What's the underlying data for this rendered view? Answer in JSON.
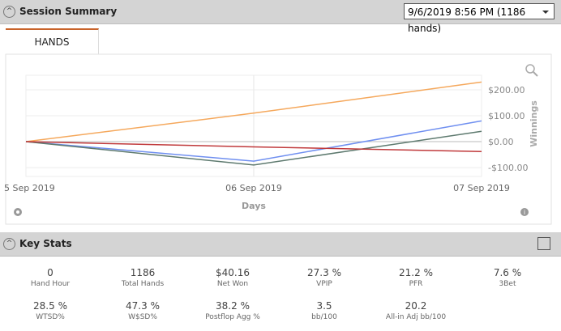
{
  "header": {
    "title": "Session Summary",
    "session": "9/6/2019 8:56 PM (1186 hands)"
  },
  "tab": "HANDS",
  "chart_data": {
    "type": "line",
    "x_label": "Days",
    "y_label": "Winnings",
    "categories": [
      "5 Sep 2019",
      "06 Sep 2019",
      "07 Sep 2019"
    ],
    "series": [
      {
        "color": "#f5a85c",
        "values": [
          0,
          110,
          230
        ]
      },
      {
        "color": "#6f8ff0",
        "values": [
          0,
          -75,
          80
        ]
      },
      {
        "color": "#5e7a6f",
        "values": [
          0,
          -90,
          40
        ]
      },
      {
        "color": "#c0393b",
        "values": [
          0,
          -20,
          -38
        ]
      }
    ],
    "ylim": [
      -134,
      256
    ],
    "yticks": [
      {
        "value": -100,
        "label": "-$100.00"
      },
      {
        "value": 0,
        "label": "$0.00"
      },
      {
        "value": 100,
        "label": "$100.00"
      },
      {
        "value": 200,
        "label": "$200.00"
      }
    ],
    "grid": true
  },
  "key_stats": {
    "title": "Key Stats",
    "stats": [
      {
        "value": "0",
        "label": "Hand Hour"
      },
      {
        "value": "1186",
        "label": "Total Hands"
      },
      {
        "value": "$40.16",
        "label": "Net Won"
      },
      {
        "value": "27.3 %",
        "label": "VPIP"
      },
      {
        "value": "21.2 %",
        "label": "PFR"
      },
      {
        "value": "7.6 %",
        "label": "3Bet"
      },
      {
        "value": "28.5 %",
        "label": "WTSD%"
      },
      {
        "value": "47.3 %",
        "label": "W$SD%"
      },
      {
        "value": "38.2 %",
        "label": "Postflop Agg %"
      },
      {
        "value": "3.5",
        "label": "bb/100"
      },
      {
        "value": "20.2",
        "label": "All-in Adj bb/100"
      }
    ]
  }
}
